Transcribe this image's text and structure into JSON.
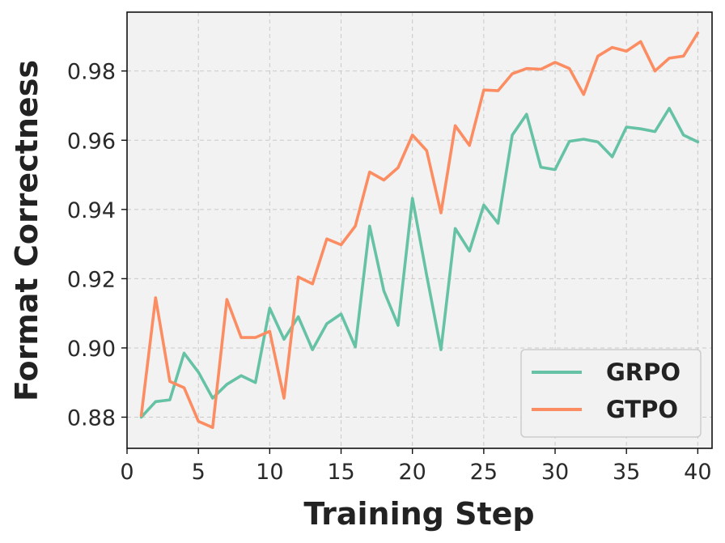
{
  "chart_data": {
    "type": "line",
    "title": "",
    "xlabel": "Training Step",
    "ylabel": "Format Correctness",
    "xlim": [
      0,
      41
    ],
    "ylim": [
      0.871,
      0.997
    ],
    "xticks": [
      0,
      5,
      10,
      15,
      20,
      25,
      30,
      35,
      40
    ],
    "yticks": [
      0.88,
      0.9,
      0.92,
      0.94,
      0.96,
      0.98
    ],
    "ytick_labels": [
      "0.88",
      "0.90",
      "0.92",
      "0.94",
      "0.96",
      "0.98"
    ],
    "grid": true,
    "legend_position": "lower-right",
    "background_color": "#f2f2f2",
    "x": [
      1,
      2,
      3,
      4,
      5,
      6,
      7,
      8,
      9,
      10,
      11,
      12,
      13,
      14,
      15,
      16,
      17,
      18,
      19,
      20,
      21,
      22,
      23,
      24,
      25,
      26,
      27,
      28,
      29,
      30,
      31,
      32,
      33,
      34,
      35,
      36,
      37,
      38,
      39,
      40
    ],
    "series": [
      {
        "name": "GRPO",
        "color": "#66c2a5",
        "values": [
          0.88,
          0.8845,
          0.885,
          0.8985,
          0.893,
          0.8855,
          0.8895,
          0.892,
          0.89,
          0.9115,
          0.9025,
          0.909,
          0.8995,
          0.907,
          0.9098,
          0.9003,
          0.9352,
          0.9165,
          0.9065,
          0.9432,
          0.921,
          0.8995,
          0.9345,
          0.928,
          0.9413,
          0.936,
          0.9615,
          0.9675,
          0.9522,
          0.9515,
          0.9597,
          0.9603,
          0.9595,
          0.9552,
          0.9638,
          0.9633,
          0.9625,
          0.9692,
          0.9615,
          0.9595
        ]
      },
      {
        "name": "GTPO",
        "color": "#fc8d62",
        "values": [
          0.8805,
          0.9145,
          0.8903,
          0.8885,
          0.8788,
          0.877,
          0.914,
          0.903,
          0.903,
          0.9048,
          0.8855,
          0.9205,
          0.9185,
          0.9315,
          0.9298,
          0.9352,
          0.9508,
          0.9485,
          0.9521,
          0.9615,
          0.957,
          0.939,
          0.9642,
          0.9585,
          0.9745,
          0.9743,
          0.9792,
          0.9807,
          0.9805,
          0.9825,
          0.9807,
          0.9732,
          0.9843,
          0.9868,
          0.9857,
          0.9885,
          0.98,
          0.9837,
          0.9843,
          0.991
        ]
      }
    ]
  }
}
